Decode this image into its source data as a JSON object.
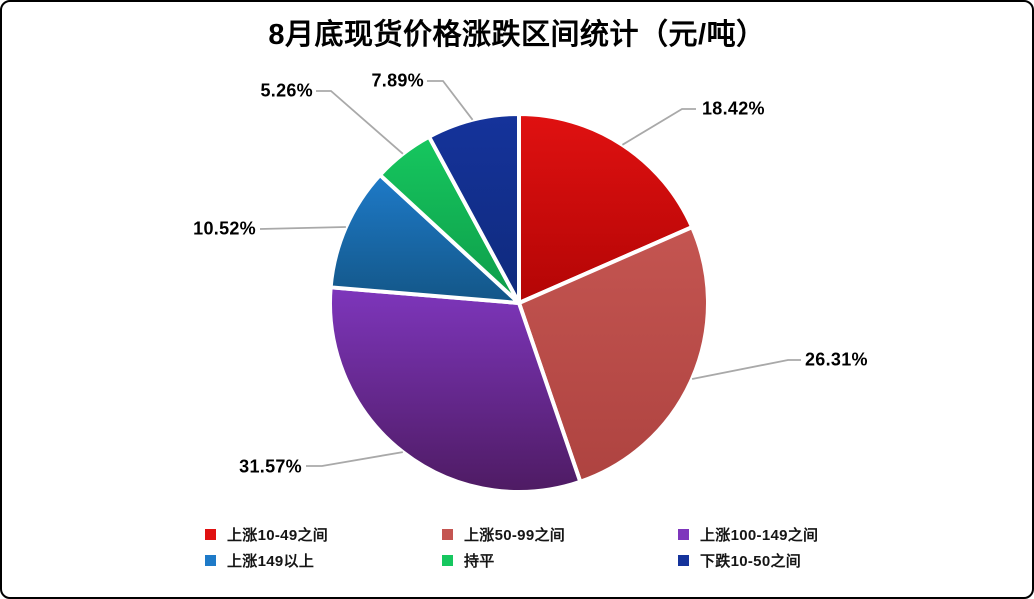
{
  "title": "8月底现货价格涨跌区间统计（元/吨）",
  "chart_data": {
    "type": "pie",
    "title": "8月底现货价格涨跌区间统计（元/吨）",
    "unit": "元/吨",
    "start_angle_deg": 0,
    "direction": "clockwise",
    "legend_position": "bottom",
    "leader_line_color": "#A9A9A9",
    "label_color": "#000000",
    "slices": [
      {
        "label": "上涨10-49之间",
        "value_pct": 18.42,
        "display": "18.42%",
        "color": "#E01111",
        "color_dark": "#B30505"
      },
      {
        "label": "上涨50-99之间",
        "value_pct": 26.31,
        "display": "26.31%",
        "color": "#C45551",
        "color_dark": "#AE4340"
      },
      {
        "label": "上涨100-149之间",
        "value_pct": 31.57,
        "display": "31.57%",
        "color": "#7E36BC",
        "color_dark": "#4E1B63"
      },
      {
        "label": "上涨149以上",
        "value_pct": 10.52,
        "display": "10.52%",
        "color": "#1E7AC8",
        "color_dark": "#135687"
      },
      {
        "label": "持平",
        "value_pct": 5.26,
        "display": "5.26%",
        "color": "#16C75F",
        "color_dark": "#0E9C49"
      },
      {
        "label": "下跌10-50之间",
        "value_pct": 7.89,
        "display": "7.89%",
        "color": "#15339B",
        "color_dark": "#0F2A7C"
      }
    ]
  }
}
